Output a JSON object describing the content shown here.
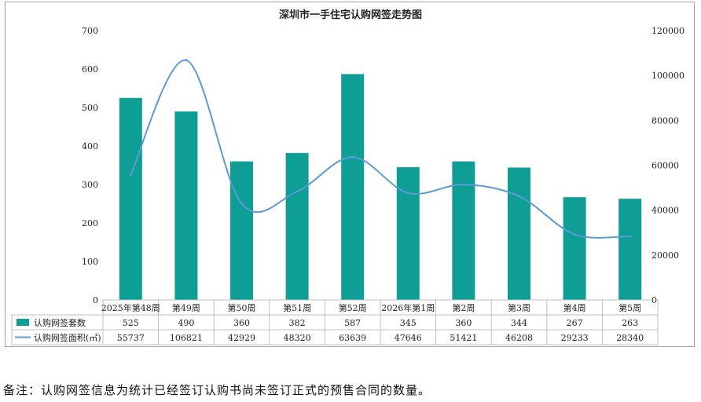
{
  "note": "备注：认购网签信息为统计已经签订认购书尚未签订正式的预售合同的数量。",
  "colors": {
    "bar": "#0f9e96",
    "line": "#5b9bd5",
    "grid": "#d9d9d9",
    "table_border": "#bfbfbf"
  },
  "chart_data": {
    "type": "bar",
    "title": "深圳市一手住宅认购网签走势图",
    "categories": [
      "2025年第48周",
      "第49周",
      "第50周",
      "第51周",
      "第52周",
      "2026年第1周",
      "第2周",
      "第3周",
      "第4周",
      "第5周"
    ],
    "series": [
      {
        "name": "认购网签套数",
        "type": "bar",
        "axis": "left",
        "values": [
          525,
          490,
          360,
          382,
          587,
          345,
          360,
          344,
          267,
          263
        ]
      },
      {
        "name": "认购网签面积(㎡)",
        "type": "line",
        "axis": "right",
        "values": [
          55737,
          106821,
          42929,
          48320,
          63639,
          47646,
          51421,
          46208,
          29233,
          28340
        ]
      }
    ],
    "y_left": {
      "min": 0,
      "max": 700,
      "ticks": [
        0,
        100,
        200,
        300,
        400,
        500,
        600,
        700
      ]
    },
    "y_right": {
      "min": 0,
      "max": 120000,
      "ticks": [
        0,
        20000,
        40000,
        60000,
        80000,
        100000,
        120000
      ]
    },
    "grid": false,
    "legend": "data-table"
  }
}
